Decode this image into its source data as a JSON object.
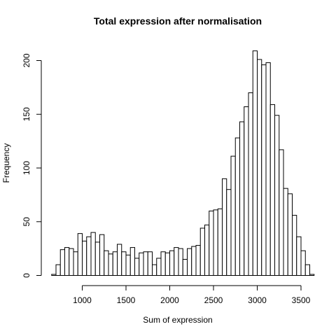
{
  "chart_data": {
    "type": "bar",
    "title": "Total expression after normalisation",
    "xlabel": "Sum of expression",
    "ylabel": "Frequency",
    "bin_width": 50,
    "bin_start": 650,
    "x_ticks": [
      1000,
      1500,
      2000,
      2500,
      3000,
      3500
    ],
    "y_ticks": [
      0,
      50,
      100,
      150,
      200
    ],
    "xlim": [
      650,
      3550
    ],
    "ylim": [
      0,
      210
    ],
    "values": [
      1,
      10,
      24,
      26,
      25,
      22,
      39,
      32,
      36,
      40,
      31,
      38,
      23,
      20,
      22,
      29,
      22,
      19,
      26,
      16,
      21,
      22,
      22,
      10,
      16,
      22,
      21,
      23,
      26,
      25,
      15,
      25,
      27,
      28,
      44,
      47,
      60,
      61,
      62,
      90,
      80,
      111,
      128,
      143,
      157,
      170,
      209,
      201,
      196,
      198,
      159,
      149,
      117,
      81,
      76,
      56,
      36,
      23,
      10,
      1
    ]
  }
}
